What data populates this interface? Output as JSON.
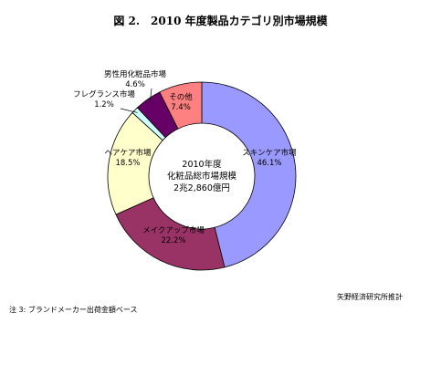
{
  "title": "図 2.　2010 年度製品カテゴリ別市場規模",
  "note": "注 3: ブランドメーカー出荷金額ベース",
  "source": "矢野経済研究所推計",
  "chart_data": {
    "type": "pie",
    "variant": "donut",
    "center_text": [
      "2010年度",
      "化粧品総市場規模",
      "2兆2,860億円"
    ],
    "slices": [
      {
        "name": "スキンケア市場",
        "value": 46.1,
        "label": "46.1%",
        "color": "#9999ff"
      },
      {
        "name": "メイクアップ市場",
        "value": 22.2,
        "label": "22.2%",
        "color": "#993366"
      },
      {
        "name": "ヘアケア市場",
        "value": 18.5,
        "label": "18.5%",
        "color": "#ffffcc"
      },
      {
        "name": "フレグランス市場",
        "value": 1.2,
        "label": "1.2%",
        "color": "#ccffff"
      },
      {
        "name": "男性用化粧品市場",
        "value": 4.6,
        "label": "4.6%",
        "color": "#660066"
      },
      {
        "name": "その他",
        "value": 7.4,
        "label": "7.4%",
        "color": "#ff8080"
      }
    ]
  }
}
